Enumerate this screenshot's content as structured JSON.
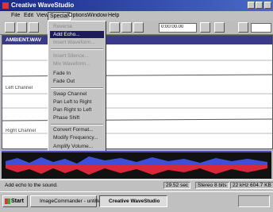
{
  "window": {
    "title": "Creative WaveStudio"
  },
  "menubar": [
    "File",
    "Edit",
    "View",
    "Special",
    "Options",
    "Window",
    "Help"
  ],
  "toolbar": {
    "time_field": "0:00:00.00"
  },
  "document": {
    "title": "AMBIENT.WAV",
    "left_label": "Left Channel",
    "right_label": "Right Channel"
  },
  "menu": {
    "items": [
      "Reverse",
      "Add Echo...",
      "Insert Waveform...",
      "Insert Silence...",
      "Mix Waveform...",
      "Fade In",
      "Fade Out",
      "Swap Channel",
      "Pan Left to Right",
      "Pan Right to Left",
      "Phase Shift",
      "Convert Format...",
      "Modify Frequency...",
      "Amplify Volume..."
    ]
  },
  "status": [
    "Add echo to the sound.",
    "29.52 sec",
    "Stereo 8 bits",
    "22 kHz 604.7 KB"
  ],
  "taskbar": {
    "start": "Start",
    "tasks": [
      "ImageCommander - untitle...",
      "Creative WaveStudio"
    ]
  }
}
